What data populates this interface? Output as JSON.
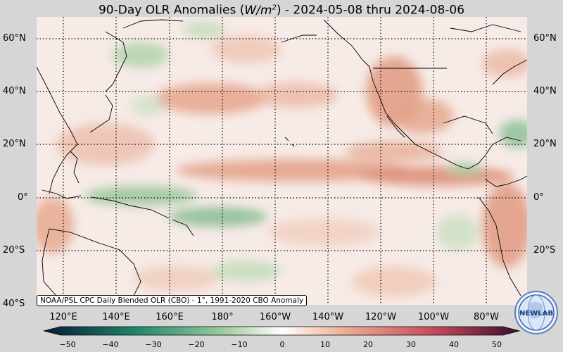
{
  "title": {
    "prefix": "90-Day OLR Anomalies (",
    "unit_base": "W/m",
    "unit_exp": "2",
    "suffix": ") - 2024-05-08 thru 2024-08-06"
  },
  "lat_labels": [
    "60°N",
    "40°N",
    "20°N",
    "0°",
    "20°S",
    "40°S"
  ],
  "lon_labels": [
    "120°E",
    "140°E",
    "160°E",
    "180°",
    "160°W",
    "140°W",
    "120°W",
    "100°W",
    "80°W"
  ],
  "colorbar": {
    "ticks": [
      "−50",
      "−40",
      "−30",
      "−20",
      "−10",
      "0",
      "10",
      "20",
      "30",
      "40",
      "50"
    ],
    "colors": {
      "neg_dark": "#0a1a35",
      "neg_mid": "#1f8a6c",
      "neg_light": "#9fcc9f",
      "zero": "#ffffff",
      "pos_light": "#f0b49a",
      "pos_mid": "#c64a5a",
      "pos_dark": "#3a0e2e"
    }
  },
  "source_note": "NOAA/PSL CPC Daily Blended OLR (CBO) - 1°, 1991-2020 CBO Anomaly",
  "logo": {
    "text": "NEWLAB",
    "icon": "globe-logo-icon"
  },
  "colors": {
    "background": "#d6d6d6",
    "map_base": "#f7ebe7",
    "positive_anomaly": "#e09a80",
    "negative_anomaly": "#9ec89e",
    "coastline": "#000000"
  }
}
